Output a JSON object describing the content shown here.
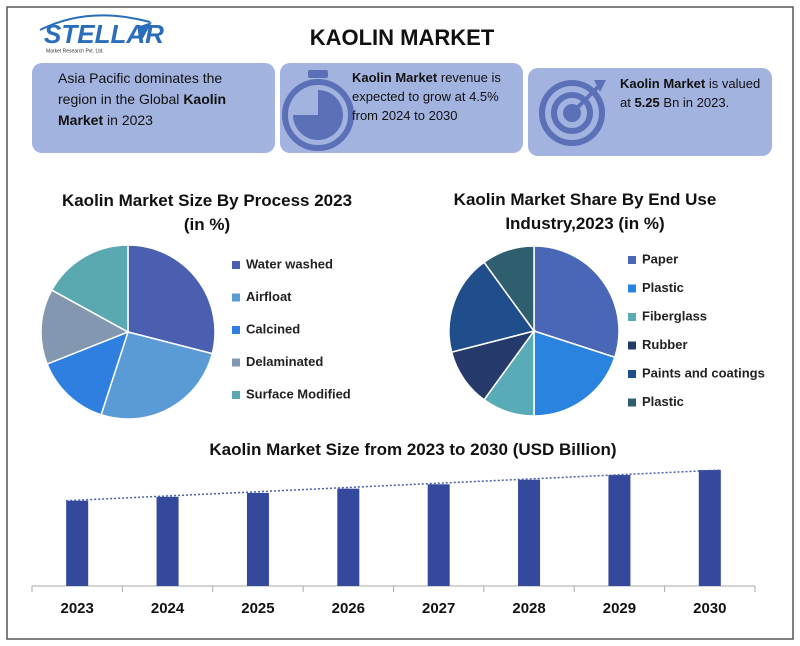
{
  "header": {
    "logo": "STELLAR",
    "logo_tagline": "Market Research Pvt. Ltd.",
    "title": "KAOLIN MARKET"
  },
  "info_boxes": [
    [
      {
        "text": "Asia Pacific dominates the region in the Global ",
        "bold": false
      },
      {
        "text": "Kaolin Market",
        "bold": true
      },
      {
        "text": " in 2023",
        "bold": false
      }
    ],
    [
      {
        "text": "Kaolin Market",
        "bold": true
      },
      {
        "text": " revenue is expected to grow at 4.5% from 2024 to 2030",
        "bold": false
      }
    ],
    [
      {
        "text": "Kaolin Market",
        "bold": true
      },
      {
        "text": " is valued at ",
        "bold": false
      },
      {
        "text": "5.25",
        "bold": true
      },
      {
        "text": " Bn in 2023.",
        "bold": false
      }
    ]
  ],
  "chart_data": [
    {
      "type": "pie",
      "title": "Kaolin Market Size By Process 2023 (in %)",
      "categories": [
        "Water washed",
        "Airfloat",
        "Calcined",
        "Delaminated",
        "Surface Modified"
      ],
      "values": [
        29,
        26,
        14,
        14,
        17
      ],
      "colors": [
        "#4a5fb0",
        "#5b9bd5",
        "#2e7fe0",
        "#8497b0",
        "#5aa9b0"
      ]
    },
    {
      "type": "pie",
      "title": "Kaolin Market Share By End Use Industry,2023 (in %)",
      "categories": [
        "Paper",
        "Plastic",
        "Fiberglass",
        "Rubber",
        "Paints and coatings",
        "Plastic"
      ],
      "values": [
        30,
        20,
        10,
        11,
        19,
        10
      ],
      "colors": [
        "#4a67b7",
        "#2b83e0",
        "#5aabb8",
        "#253a6b",
        "#1f4e8a",
        "#2f5f6e"
      ]
    },
    {
      "type": "bar",
      "title": "Kaolin Market Size from 2023 to 2030 (USD Billion)",
      "categories": [
        "2023",
        "2024",
        "2025",
        "2026",
        "2027",
        "2028",
        "2029",
        "2030"
      ],
      "values": [
        5.25,
        5.49,
        5.73,
        5.99,
        6.26,
        6.54,
        6.83,
        7.14
      ],
      "color": "#34489c",
      "trendline": true
    }
  ]
}
